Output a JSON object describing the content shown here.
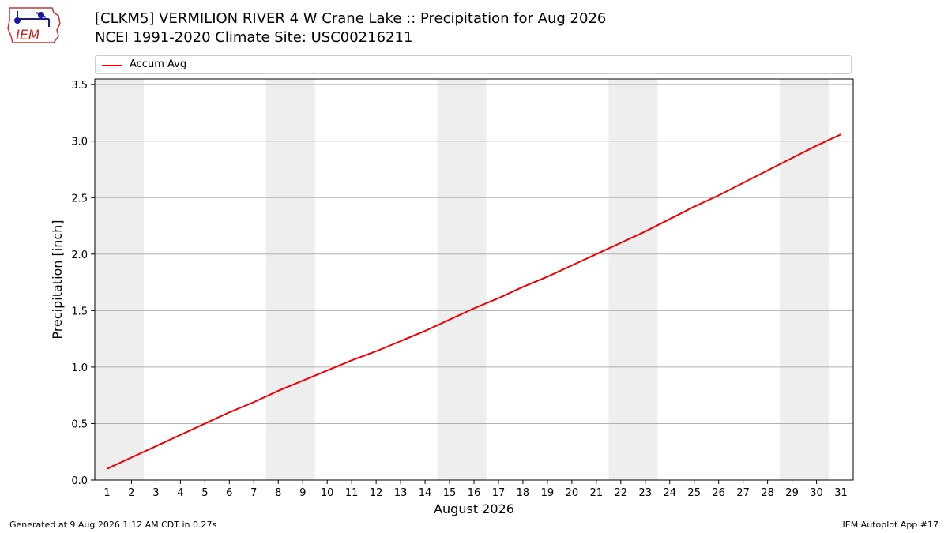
{
  "header": {
    "title_line1": "[CLKM5] VERMILION RIVER 4 W Crane Lake :: Precipitation for Aug 2026",
    "title_line2": "NCEI 1991-2020 Climate Site: USC00216211",
    "logo_text": "IEM"
  },
  "footer": {
    "left": "Generated at 9 Aug 2026 1:12 AM CDT in 0.27s",
    "right": "IEM Autoplot App #17"
  },
  "colors": {
    "series": "#ee0000",
    "weekend_band": "#eeeeee",
    "grid": "#b0b0b0"
  },
  "chart_data": {
    "type": "line",
    "xlabel": "August 2026",
    "ylabel": "Precipitation [inch]",
    "xlim": [
      0.5,
      31.5
    ],
    "ylim": [
      0,
      3.55
    ],
    "yticks": [
      0.0,
      0.5,
      1.0,
      1.5,
      2.0,
      2.5,
      3.0,
      3.5
    ],
    "x": [
      1,
      2,
      3,
      4,
      5,
      6,
      7,
      8,
      9,
      10,
      11,
      12,
      13,
      14,
      15,
      16,
      17,
      18,
      19,
      20,
      21,
      22,
      23,
      24,
      25,
      26,
      27,
      28,
      29,
      30,
      31
    ],
    "weekend_bands": [
      [
        0.5,
        2.5
      ],
      [
        7.5,
        9.5
      ],
      [
        14.5,
        16.5
      ],
      [
        21.5,
        23.5
      ],
      [
        28.5,
        30.5
      ]
    ],
    "grid": "horizontal",
    "legend_position": "top",
    "series": [
      {
        "name": "Accum Avg",
        "values": [
          0.1,
          0.2,
          0.3,
          0.4,
          0.5,
          0.6,
          0.69,
          0.79,
          0.88,
          0.97,
          1.06,
          1.14,
          1.23,
          1.32,
          1.42,
          1.52,
          1.61,
          1.71,
          1.8,
          1.9,
          2.0,
          2.1,
          2.2,
          2.31,
          2.42,
          2.52,
          2.63,
          2.74,
          2.85,
          2.96,
          3.06
        ]
      }
    ]
  }
}
